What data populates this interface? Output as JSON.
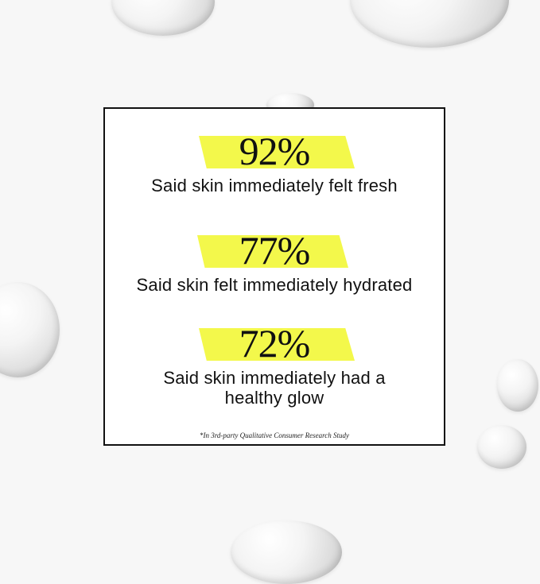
{
  "stats": [
    {
      "percent": "92%",
      "caption": "Said skin immediately felt fresh"
    },
    {
      "percent": "77%",
      "caption": "Said skin felt immediately hydrated"
    },
    {
      "percent": "72%",
      "caption_line1": "Said skin immediately had a",
      "caption_line2": "healthy glow"
    }
  ],
  "footnote": "*In 3rd-party Qualitative Consumer Research Study",
  "colors": {
    "highlight": "#f3f84b",
    "text": "#111111",
    "background": "#f7f7f7"
  }
}
